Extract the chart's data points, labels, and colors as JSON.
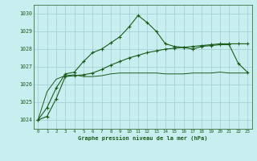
{
  "title": "Graphe pression niveau de la mer (hPa)",
  "background_color": "#c8eef0",
  "grid_color": "#a0ccd4",
  "line_color": "#1a5c1a",
  "x_labels": [
    "0",
    "1",
    "2",
    "3",
    "4",
    "5",
    "6",
    "7",
    "8",
    "9",
    "10",
    "11",
    "12",
    "13",
    "14",
    "15",
    "16",
    "17",
    "18",
    "19",
    "20",
    "21",
    "22",
    "23"
  ],
  "ylim": [
    1023.5,
    1030.5
  ],
  "yticks": [
    1024,
    1025,
    1026,
    1027,
    1028,
    1029,
    1030
  ],
  "series1": [
    1024.0,
    1024.7,
    1025.8,
    1026.6,
    1026.7,
    1027.3,
    1027.8,
    1028.0,
    1028.35,
    1028.7,
    1029.25,
    1029.9,
    1029.5,
    1029.0,
    1028.3,
    1028.15,
    1028.1,
    1028.0,
    1028.15,
    1028.2,
    1028.25,
    1028.25,
    1027.2,
    1026.7
  ],
  "series2": [
    1024.0,
    1025.6,
    1026.3,
    1026.5,
    1026.55,
    1026.45,
    1026.45,
    1026.5,
    1026.6,
    1026.65,
    1026.65,
    1026.65,
    1026.65,
    1026.65,
    1026.6,
    1026.6,
    1026.6,
    1026.65,
    1026.65,
    1026.65,
    1026.7,
    1026.65,
    1026.65,
    1026.65
  ],
  "series3": [
    1024.0,
    1024.2,
    1025.2,
    1026.45,
    1026.5,
    1026.55,
    1026.65,
    1026.85,
    1027.1,
    1027.3,
    1027.5,
    1027.65,
    1027.8,
    1027.9,
    1028.0,
    1028.05,
    1028.1,
    1028.15,
    1028.2,
    1028.25,
    1028.3,
    1028.3,
    1028.3,
    1028.3
  ],
  "figwidth": 3.2,
  "figheight": 2.0,
  "dpi": 100
}
